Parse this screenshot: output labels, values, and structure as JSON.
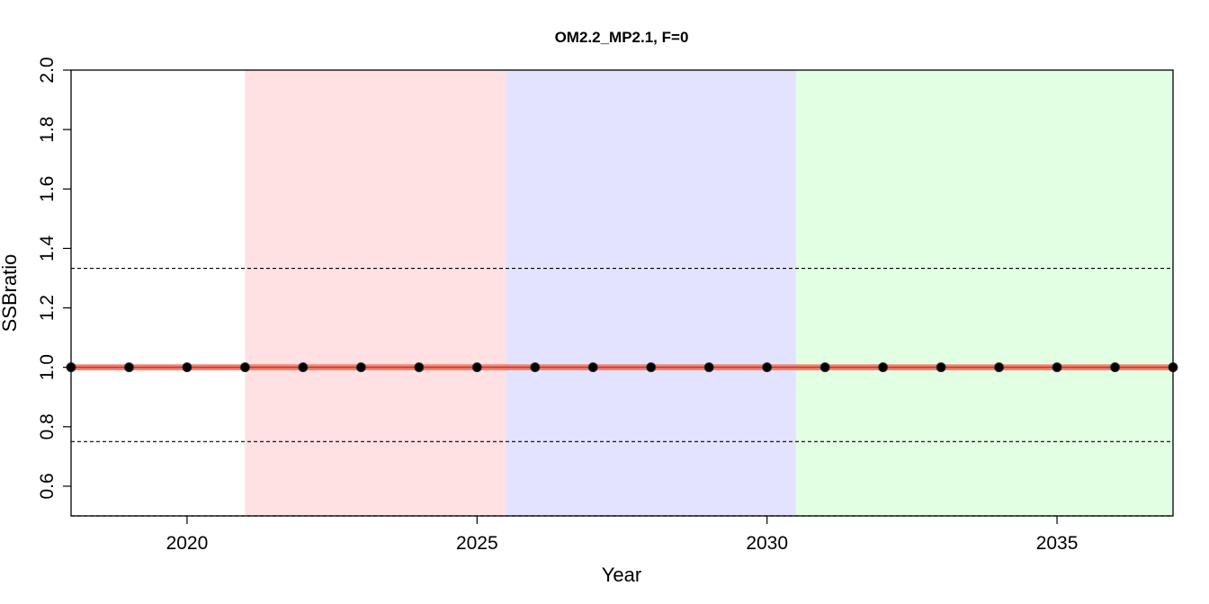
{
  "chart_data": {
    "type": "line",
    "title": "OM2.2_MP2.1, F=0",
    "xlabel": "Year",
    "ylabel": "SSBratio",
    "xlim": [
      2018,
      2037
    ],
    "ylim": [
      0.5,
      2.0
    ],
    "x_ticks": [
      2020,
      2025,
      2030,
      2035
    ],
    "y_ticks": [
      0.6,
      0.8,
      1.0,
      1.2,
      1.4,
      1.6,
      1.8,
      2.0
    ],
    "x_tick_labels": [
      "2020",
      "2025",
      "2030",
      "2035"
    ],
    "y_tick_labels": [
      "0.6",
      "0.8",
      "1.0",
      "1.2",
      "1.4",
      "1.6",
      "1.8",
      "2.0"
    ],
    "shaded_periods": [
      {
        "from": 2021,
        "to": 2025.5,
        "color": "#ffe1e4"
      },
      {
        "from": 2025.5,
        "to": 2030.5,
        "color": "#e3e3ff"
      },
      {
        "from": 2030.5,
        "to": 2037,
        "color": "#e3ffe3"
      }
    ],
    "reference_lines": [
      {
        "y": 1.333,
        "style": "dashed",
        "color": "#000000"
      },
      {
        "y": 0.75,
        "style": "dashed",
        "color": "#000000"
      },
      {
        "y": 0.5,
        "style": "dashed",
        "color": "#000000"
      }
    ],
    "band": {
      "low": 0.99,
      "high": 1.01,
      "color": "#f4806e"
    },
    "series": [
      {
        "color": "#000000",
        "x": [
          2018,
          2019,
          2020,
          2021,
          2022,
          2023,
          2024,
          2025,
          2026,
          2027,
          2028,
          2029,
          2030,
          2031,
          2032,
          2033,
          2034,
          2035,
          2036,
          2037
        ],
        "values": [
          1.0,
          1.0,
          1.0,
          1.0,
          1.0,
          1.0,
          1.0,
          1.0,
          1.0,
          1.0,
          1.0,
          1.0,
          1.0,
          1.0,
          1.0,
          1.0,
          1.0,
          1.0,
          1.0,
          1.0
        ]
      }
    ],
    "grid": false,
    "legend": "none"
  }
}
